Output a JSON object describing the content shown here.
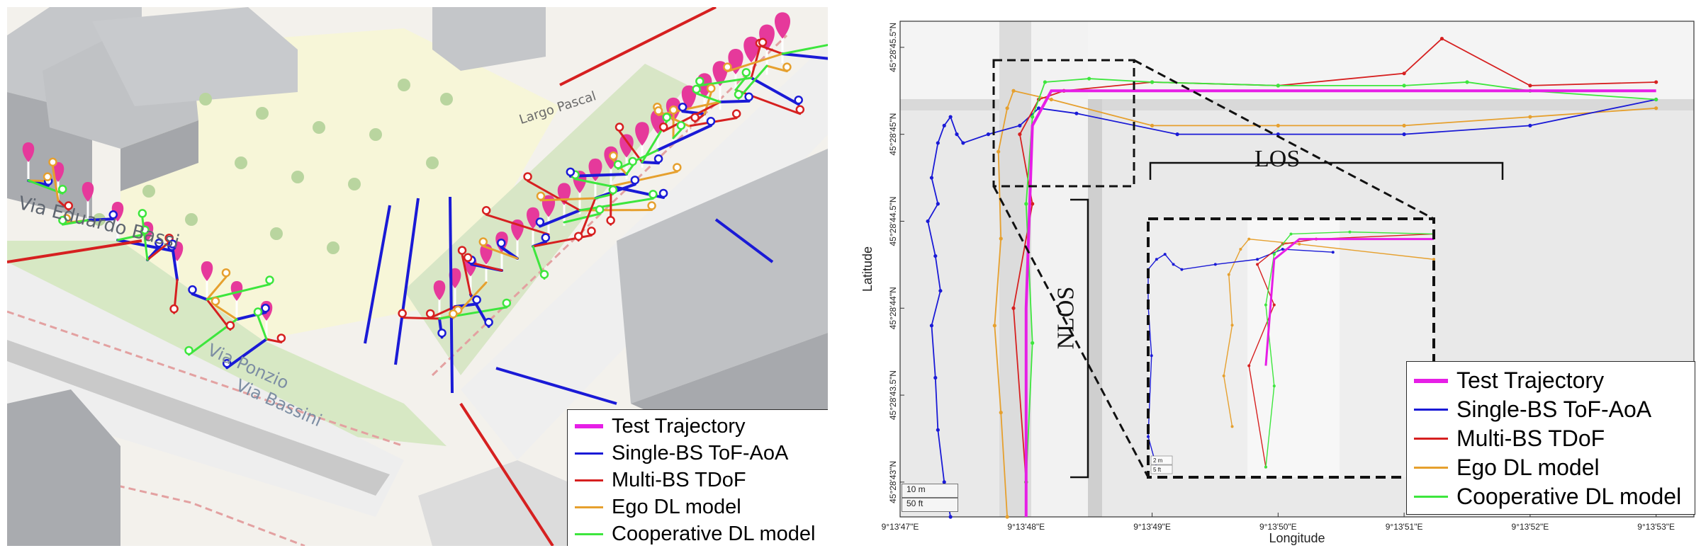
{
  "left_panel": {
    "street_labels": [
      "Via Eduardo Bassi",
      "Via Ponzio",
      "Via Bassini",
      "Largo Pascal"
    ],
    "legend": [
      {
        "label": "Test Trajectory",
        "color": "#e61ee6",
        "style": "thick"
      },
      {
        "label": "Single-BS ToF-AoA",
        "color": "#1a1ad6",
        "style": "normal"
      },
      {
        "label": "Multi-BS TDoF",
        "color": "#d62020",
        "style": "normal"
      },
      {
        "label": "Ego DL model",
        "color": "#e6a02e",
        "style": "normal"
      },
      {
        "label": "Cooperative DL model",
        "color": "#3de63d",
        "style": "normal"
      }
    ]
  },
  "right_panel": {
    "xlabel": "Longitude",
    "ylabel": "Latitude",
    "x_ticks": [
      "9°13'47\"E",
      "9°13'48\"E",
      "9°13'49\"E",
      "9°13'50\"E",
      "9°13'51\"E",
      "9°13'52\"E",
      "9°13'53\"E"
    ],
    "y_ticks": [
      "45°28'45.5\"N",
      "45°28'45\"N",
      "45°28'44.5\"N",
      "45°28'44\"N",
      "45°28'43.5\"N",
      "45°28'43\"N"
    ],
    "scale_m": "10 m",
    "scale_ft": "50 ft",
    "inset_scale_m": "2 m",
    "inset_scale_ft": "5 ft",
    "los_label": "LOS",
    "nlos_label": "NLOS",
    "legend": [
      {
        "label": "Test Trajectory",
        "color": "#e61ee6",
        "style": "thick"
      },
      {
        "label": "Single-BS ToF-AoA",
        "color": "#1a1ad6",
        "style": "normal"
      },
      {
        "label": "Multi-BS TDoF",
        "color": "#d62020",
        "style": "normal"
      },
      {
        "label": "Ego DL model",
        "color": "#e6a02e",
        "style": "normal"
      },
      {
        "label": "Cooperative DL model",
        "color": "#3de63d",
        "style": "normal"
      }
    ]
  },
  "chart_data": {
    "type": "line",
    "xlabel": "Longitude",
    "ylabel": "Latitude",
    "x_ticks": [
      "9°13'47\"E",
      "9°13'48\"E",
      "9°13'49\"E",
      "9°13'50\"E",
      "9°13'51\"E",
      "9°13'52\"E",
      "9°13'53\"E"
    ],
    "y_ticks": [
      "45°28'45.5\"N",
      "45°28'45\"N",
      "45°28'44.5\"N",
      "45°28'44\"N",
      "45°28'43.5\"N",
      "45°28'43\"N"
    ],
    "xlim_arcsec": [
      47,
      53.3
    ],
    "ylim_arcsec": [
      42.8,
      45.65
    ],
    "series": [
      {
        "name": "Test Trajectory",
        "color": "#e61ee6",
        "x": [
          48.0,
          48.0,
          48.05,
          48.2,
          49.0,
          50.0,
          51.0,
          52.0,
          53.0
        ],
        "y": [
          42.8,
          44.0,
          45.05,
          45.25,
          45.25,
          45.25,
          45.25,
          45.25,
          45.25
        ]
      },
      {
        "name": "Single-BS ToF-AoA",
        "color": "#1a1ad6",
        "x": [
          47.4,
          47.35,
          47.3,
          47.28,
          47.25,
          47.32,
          47.28,
          47.22,
          47.3,
          47.25,
          47.3,
          47.35,
          47.4,
          47.45,
          47.5,
          47.7,
          47.95,
          48.1,
          48.4,
          49.2,
          50.0,
          51.0,
          52.0,
          53.0
        ],
        "y": [
          42.8,
          43.0,
          43.3,
          43.6,
          43.9,
          44.1,
          44.3,
          44.5,
          44.6,
          44.75,
          44.95,
          45.05,
          45.1,
          45.0,
          44.95,
          45.0,
          45.05,
          45.15,
          45.12,
          45.0,
          45.0,
          45.0,
          45.05,
          45.2
        ]
      },
      {
        "name": "Multi-BS TDoF",
        "color": "#d62020",
        "x": [
          48.0,
          47.9,
          48.05,
          47.95,
          48.1,
          48.3,
          49.0,
          50.0,
          51.0,
          51.3,
          52.0,
          53.0
        ],
        "y": [
          43.0,
          44.0,
          44.6,
          45.0,
          45.2,
          45.25,
          45.3,
          45.28,
          45.35,
          45.55,
          45.28,
          45.3
        ]
      },
      {
        "name": "Ego DL model",
        "color": "#e6a02e",
        "x": [
          47.85,
          47.8,
          47.75,
          47.8,
          47.78,
          47.85,
          47.9,
          48.2,
          49.0,
          50.0,
          51.0,
          52.0,
          53.0
        ],
        "y": [
          42.8,
          43.4,
          43.9,
          44.4,
          44.9,
          45.15,
          45.25,
          45.2,
          45.05,
          45.05,
          45.05,
          45.1,
          45.15
        ]
      },
      {
        "name": "Cooperative DL model",
        "color": "#3de63d",
        "x": [
          48.0,
          48.05,
          48.0,
          48.05,
          48.15,
          48.5,
          49.0,
          50.0,
          51.0,
          51.5,
          52.0,
          53.0
        ],
        "y": [
          43.0,
          43.8,
          44.6,
          45.1,
          45.3,
          45.32,
          45.3,
          45.28,
          45.28,
          45.3,
          45.25,
          45.2
        ]
      }
    ]
  }
}
